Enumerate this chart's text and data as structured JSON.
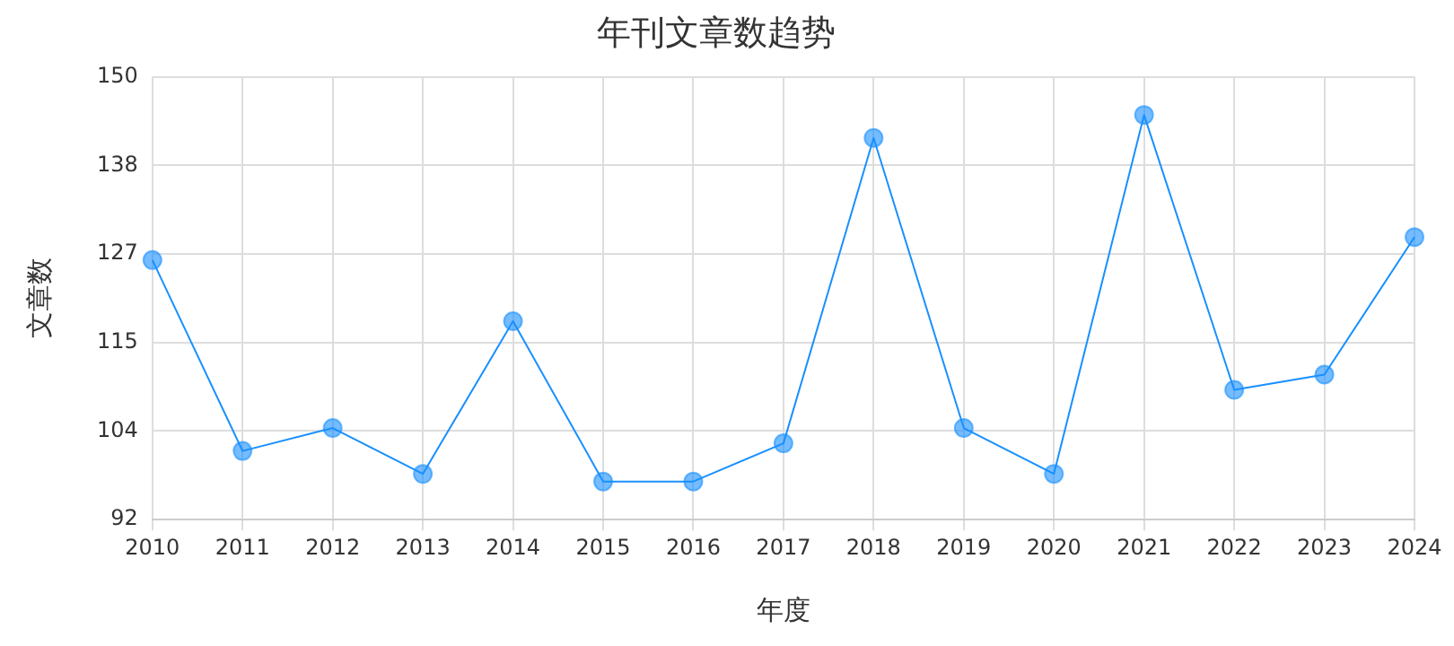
{
  "chart_data": {
    "type": "line",
    "title": "年刊文章数趋势",
    "xlabel": "年度",
    "ylabel": "文章数",
    "categories": [
      "2010",
      "2011",
      "2012",
      "2013",
      "2014",
      "2015",
      "2016",
      "2017",
      "2018",
      "2019",
      "2020",
      "2021",
      "2022",
      "2023",
      "2024"
    ],
    "series": [
      {
        "color": "#1890ff",
        "values": [
          126,
          101,
          104,
          98,
          118,
          97,
          97,
          102,
          142,
          104,
          98,
          145,
          109,
          111,
          129
        ]
      }
    ],
    "ylim": [
      92,
      150
    ],
    "yticks": [
      92,
      {
        "value": 103.6,
        "label": "104"
      },
      {
        "value": 115.2,
        "label": "115"
      },
      {
        "value": 126.8,
        "label": "127"
      },
      {
        "value": 138.4,
        "label": "138"
      },
      150
    ],
    "grid": true,
    "legend": false,
    "marker": "circle",
    "line_style": "solid"
  }
}
